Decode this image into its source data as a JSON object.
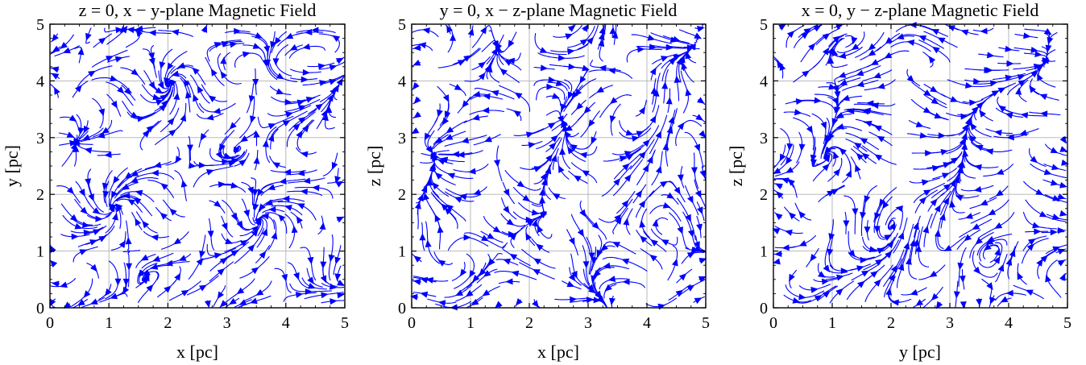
{
  "chart_data": [
    {
      "type": "streamplot",
      "title": "z = 0, x − y-plane Magnetic Field",
      "xlabel": "x [pc]",
      "ylabel": "y [pc]",
      "xlim": [
        0,
        5
      ],
      "ylim": [
        0,
        5
      ],
      "xticks": [
        "0",
        "1",
        "2",
        "3",
        "4",
        "5"
      ],
      "yticks": [
        "0",
        "1",
        "2",
        "3",
        "4",
        "5"
      ],
      "grid": true,
      "stream_color": "#0000ff",
      "seed": 11
    },
    {
      "type": "streamplot",
      "title": "y = 0, x − z-plane Magnetic Field",
      "xlabel": "x [pc]",
      "ylabel": "z [pc]",
      "xlim": [
        0,
        5
      ],
      "ylim": [
        0,
        5
      ],
      "xticks": [
        "0",
        "1",
        "2",
        "3",
        "4",
        "5"
      ],
      "yticks": [
        "0",
        "1",
        "2",
        "3",
        "4",
        "5"
      ],
      "grid": true,
      "stream_color": "#0000ff",
      "seed": 23
    },
    {
      "type": "streamplot",
      "title": "x = 0, y − z-plane Magnetic Field",
      "xlabel": "y [pc]",
      "ylabel": "z [pc]",
      "xlim": [
        0,
        5
      ],
      "ylim": [
        0,
        5
      ],
      "xticks": [
        "0",
        "1",
        "2",
        "3",
        "4",
        "5"
      ],
      "yticks": [
        "0",
        "1",
        "2",
        "3",
        "4",
        "5"
      ],
      "grid": true,
      "stream_color": "#0000ff",
      "seed": 37
    }
  ]
}
